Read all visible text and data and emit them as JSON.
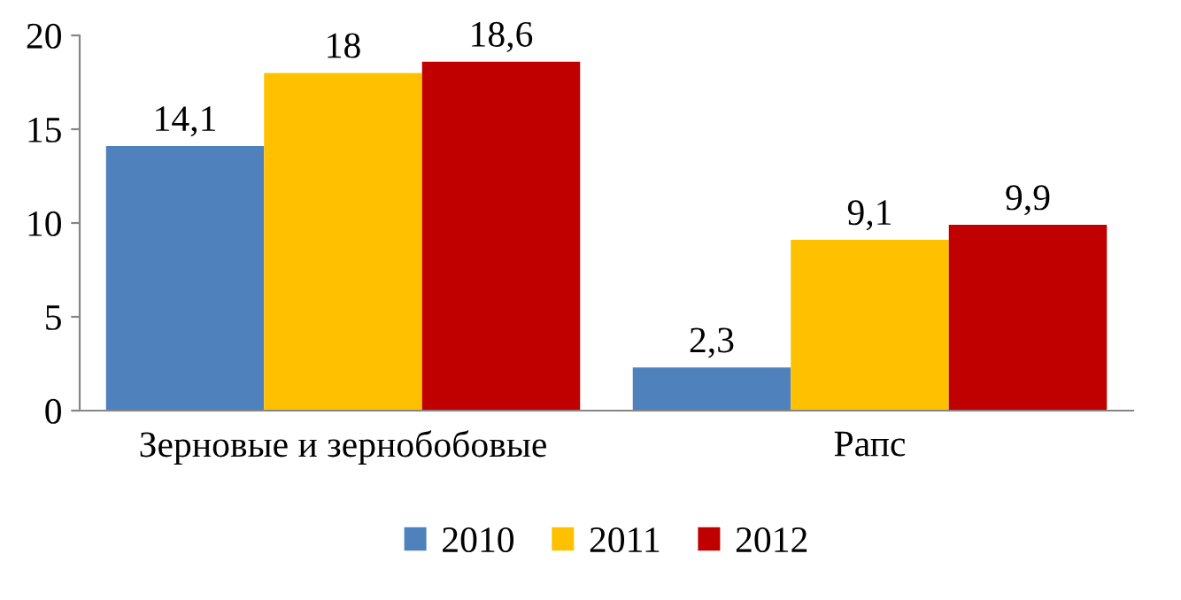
{
  "chart_data": {
    "type": "bar",
    "categories": [
      "Зерновые и зернобобовые",
      "Рапс"
    ],
    "series": [
      {
        "name": "2010",
        "color": "#4f81bd",
        "values": [
          14.1,
          2.3
        ],
        "value_labels": [
          "14,1",
          "2,3"
        ]
      },
      {
        "name": "2011",
        "color": "#ffc000",
        "values": [
          18,
          9.1
        ],
        "value_labels": [
          "18",
          "9,1"
        ]
      },
      {
        "name": "2012",
        "color": "#c00000",
        "values": [
          18.6,
          9.9
        ],
        "value_labels": [
          "18,6",
          "9,9"
        ]
      }
    ],
    "ylim": [
      0,
      20
    ],
    "yticks": [
      0,
      5,
      10,
      15,
      20
    ],
    "grid": false,
    "legend": "bottom"
  }
}
